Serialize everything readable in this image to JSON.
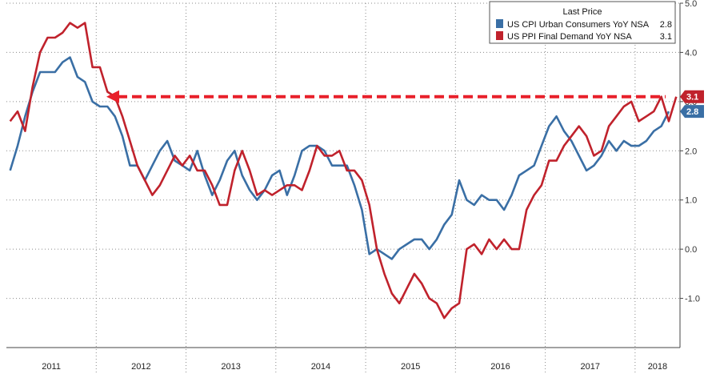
{
  "chart_data": {
    "type": "line",
    "y_ticks": [
      -1.0,
      0.0,
      1.0,
      2.0,
      3.0,
      4.0,
      5.0
    ],
    "y_tick_labels": [
      "-1.0",
      "0.0",
      "1.0",
      "2.0",
      "3.0",
      "4.0",
      "5.0"
    ],
    "ylim": [
      -2.0,
      5.0
    ],
    "x_start": "2011-01",
    "x_end": "2018-06",
    "year_labels": [
      "2011",
      "2012",
      "2013",
      "2014",
      "2015",
      "2016",
      "2017",
      "2018"
    ],
    "grid": true,
    "legend": {
      "title": "Last Price",
      "position": "top-right",
      "entries": [
        {
          "label": "US CPI Urban Consumers YoY NSA",
          "value": "2.8"
        },
        {
          "label": "US PPI Final Demand YoY NSA",
          "value": "3.1"
        }
      ]
    },
    "series": [
      {
        "name": "US CPI Urban Consumers YoY NSA",
        "color": "#3a6fa5",
        "last_label": "2.8",
        "values": [
          1.6,
          2.1,
          2.7,
          3.2,
          3.6,
          3.6,
          3.6,
          3.8,
          3.9,
          3.5,
          3.4,
          3.0,
          2.9,
          2.9,
          2.7,
          2.3,
          1.7,
          1.7,
          1.4,
          1.7,
          2.0,
          2.2,
          1.8,
          1.7,
          1.6,
          2.0,
          1.5,
          1.1,
          1.4,
          1.8,
          2.0,
          1.5,
          1.2,
          1.0,
          1.2,
          1.5,
          1.6,
          1.1,
          1.5,
          2.0,
          2.1,
          2.1,
          2.0,
          1.7,
          1.7,
          1.7,
          1.3,
          0.8,
          -0.1,
          0.0,
          -0.1,
          -0.2,
          0.0,
          0.1,
          0.2,
          0.2,
          0.0,
          0.2,
          0.5,
          0.7,
          1.4,
          1.0,
          0.9,
          1.1,
          1.0,
          1.0,
          0.8,
          1.1,
          1.5,
          1.6,
          1.7,
          2.1,
          2.5,
          2.7,
          2.4,
          2.2,
          1.9,
          1.6,
          1.7,
          1.9,
          2.2,
          2.0,
          2.2,
          2.1,
          2.1,
          2.2,
          2.4,
          2.5,
          2.8
        ]
      },
      {
        "name": "US PPI Final Demand YoY NSA",
        "color": "#c0222c",
        "last_label": "3.1",
        "values": [
          2.6,
          2.8,
          2.4,
          3.3,
          4.0,
          4.3,
          4.3,
          4.4,
          4.6,
          4.5,
          4.6,
          3.7,
          3.7,
          3.2,
          3.1,
          2.7,
          2.2,
          1.7,
          1.4,
          1.1,
          1.3,
          1.6,
          1.9,
          1.7,
          1.9,
          1.6,
          1.6,
          1.3,
          0.9,
          0.9,
          1.6,
          2.0,
          1.6,
          1.1,
          1.2,
          1.1,
          1.2,
          1.3,
          1.3,
          1.2,
          1.6,
          2.1,
          1.9,
          1.9,
          2.0,
          1.6,
          1.6,
          1.4,
          0.9,
          0.0,
          -0.5,
          -0.9,
          -1.1,
          -0.8,
          -0.5,
          -0.7,
          -1.0,
          -1.1,
          -1.4,
          -1.2,
          -1.1,
          0.0,
          0.1,
          -0.1,
          0.2,
          0.0,
          0.2,
          0.0,
          0.0,
          0.8,
          1.1,
          1.3,
          1.8,
          1.8,
          2.1,
          2.3,
          2.5,
          2.3,
          1.9,
          2.0,
          2.5,
          2.7,
          2.9,
          3.0,
          2.6,
          2.7,
          2.8,
          3.1,
          2.6,
          3.1
        ]
      }
    ],
    "reference_line": {
      "value": 3.1,
      "color": "#e8202a",
      "style": "dashed",
      "arrow": "left"
    }
  }
}
